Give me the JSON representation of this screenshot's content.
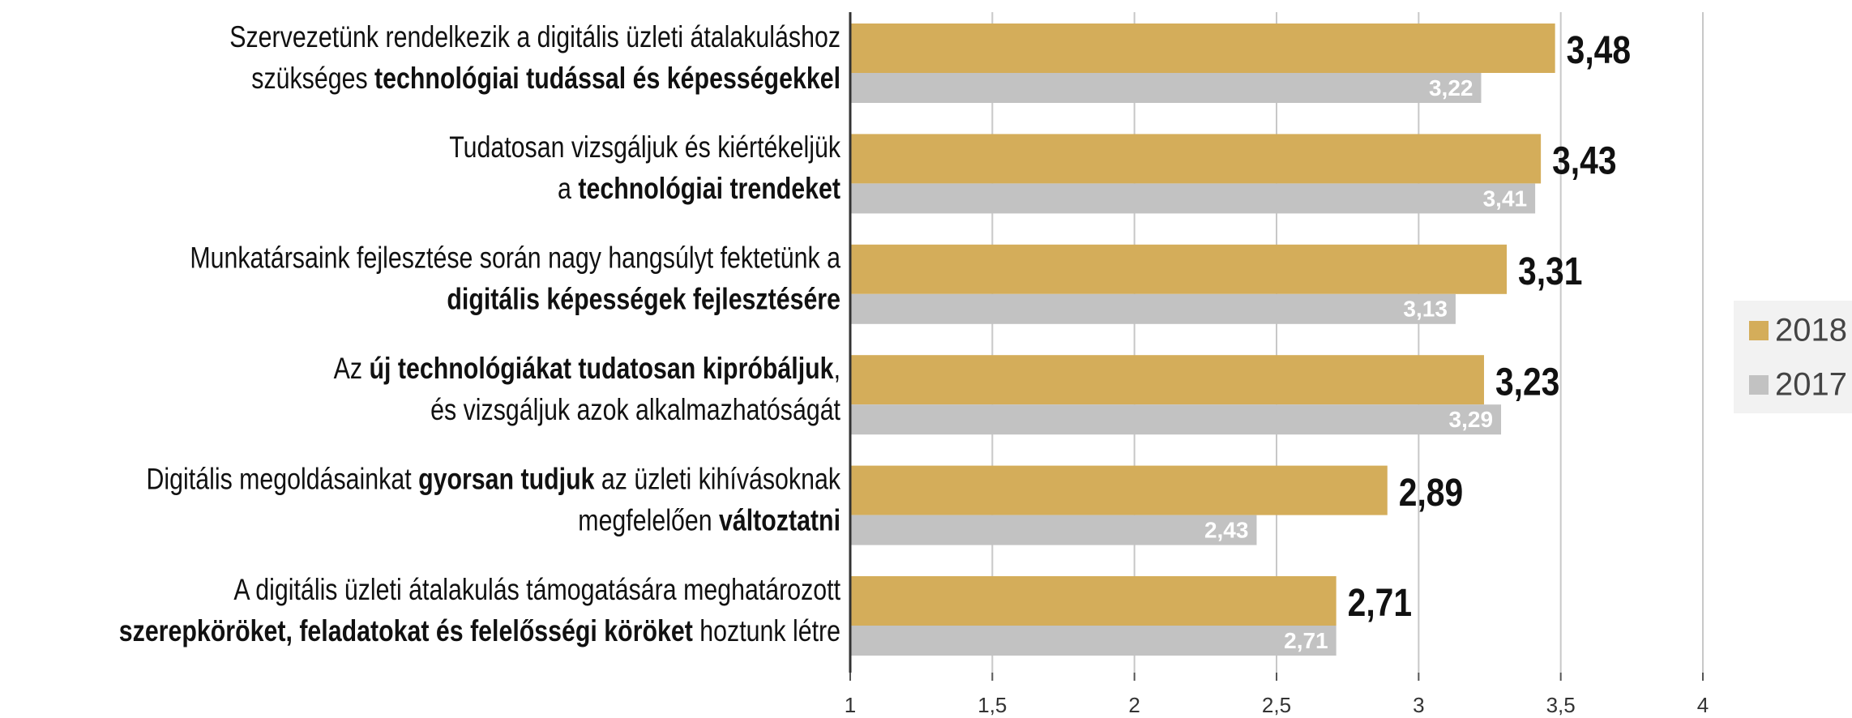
{
  "chart_data": {
    "type": "bar",
    "orientation": "horizontal",
    "categories": [
      [
        [
          {
            "text": "Szervezetünk rendelkezik a digitális üzleti átalakuláshoz",
            "bold": false
          }
        ],
        [
          {
            "text": "szükséges ",
            "bold": false
          },
          {
            "text": "technológiai tudással és képességekkel",
            "bold": true
          }
        ]
      ],
      [
        [
          {
            "text": "Tudatosan vizsgáljuk és kiértékeljük",
            "bold": false
          }
        ],
        [
          {
            "text": "a ",
            "bold": false
          },
          {
            "text": "technológiai trendeket",
            "bold": true
          }
        ]
      ],
      [
        [
          {
            "text": "Munkatársaink fejlesztése során nagy hangsúlyt fektetünk a",
            "bold": false
          }
        ],
        [
          {
            "text": "digitális képességek fejlesztésére",
            "bold": true
          }
        ]
      ],
      [
        [
          {
            "text": "Az ",
            "bold": false
          },
          {
            "text": "új technológiákat tudatosan kipróbáljuk",
            "bold": true
          },
          {
            "text": ",",
            "bold": false
          }
        ],
        [
          {
            "text": "és vizsgáljuk azok alkalmazhatóságát",
            "bold": false
          }
        ]
      ],
      [
        [
          {
            "text": "Digitális megoldásainkat ",
            "bold": false
          },
          {
            "text": "gyorsan tudjuk",
            "bold": true
          },
          {
            "text": " az üzleti kihívásoknak",
            "bold": false
          }
        ],
        [
          {
            "text": "megfelelően ",
            "bold": false
          },
          {
            "text": "változtatni",
            "bold": true
          }
        ]
      ],
      [
        [
          {
            "text": "A digitális üzleti átalakulás támogatására meghatározott",
            "bold": false
          }
        ],
        [
          {
            "text": "szerepköröket, feladatokat és felelősségi köröket",
            "bold": true
          },
          {
            "text": " hoztunk létre",
            "bold": false
          }
        ]
      ]
    ],
    "series": [
      {
        "name": "2018",
        "color": "#d4ad5a",
        "values": [
          3.48,
          3.43,
          3.31,
          3.23,
          2.89,
          2.71
        ],
        "value_labels": [
          "3,48",
          "3,43",
          "3,31",
          "3,23",
          "2,89",
          "2,71"
        ]
      },
      {
        "name": "2017",
        "color": "#c2c2c2",
        "values": [
          3.22,
          3.41,
          3.13,
          3.29,
          2.43,
          2.71
        ],
        "value_labels": [
          "3,22",
          "3,41",
          "3,13",
          "3,29",
          "2,43",
          "2,71"
        ]
      }
    ],
    "xlim": [
      1,
      4
    ],
    "xticks": [
      1,
      {
        "value": 1.5,
        "label": "1,5"
      },
      2,
      {
        "value": 2.5,
        "label": "2,5"
      },
      3,
      {
        "value": 3.5,
        "label": "3,5"
      },
      4
    ],
    "grid": true,
    "legend": "right"
  }
}
